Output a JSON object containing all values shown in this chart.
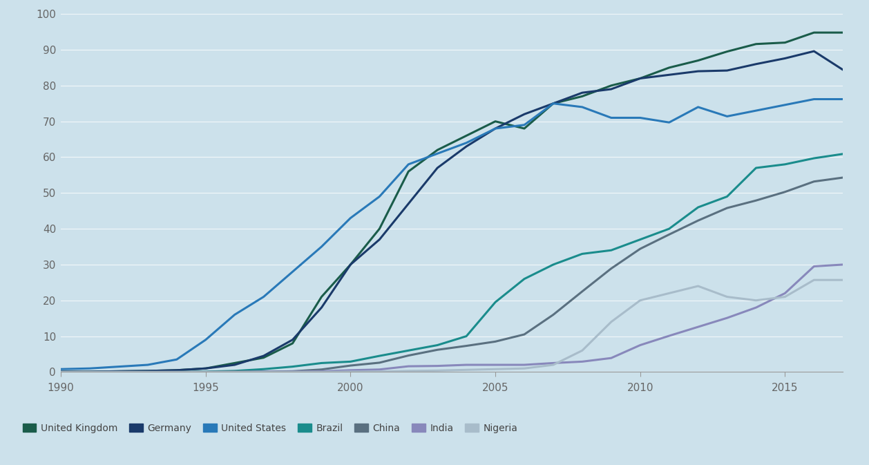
{
  "background_color": "#cce1eb",
  "xlim": [
    1990,
    2017
  ],
  "ylim": [
    0,
    100
  ],
  "yticks": [
    0,
    10,
    20,
    30,
    40,
    50,
    60,
    70,
    80,
    90,
    100
  ],
  "xticks": [
    1990,
    1995,
    2000,
    2005,
    2010,
    2015
  ],
  "series": {
    "United Kingdom": {
      "color": "#1a5c4a",
      "data": {
        "1990": 0.1,
        "1991": 0.1,
        "1992": 0.2,
        "1993": 0.3,
        "1994": 0.5,
        "1995": 1.0,
        "1996": 2.5,
        "1997": 4.0,
        "1998": 8.0,
        "1999": 21.0,
        "2000": 30.0,
        "2001": 40.0,
        "2002": 56.0,
        "2003": 62.0,
        "2004": 66.0,
        "2005": 70.0,
        "2006": 68.0,
        "2007": 75.0,
        "2008": 77.0,
        "2009": 80.0,
        "2010": 82.0,
        "2011": 85.0,
        "2012": 87.0,
        "2013": 89.5,
        "2014": 91.6,
        "2015": 92.0,
        "2016": 94.8,
        "2017": 94.8
      }
    },
    "Germany": {
      "color": "#1a3a6a",
      "data": {
        "1990": 0.1,
        "1991": 0.1,
        "1992": 0.2,
        "1993": 0.3,
        "1994": 0.5,
        "1995": 1.0,
        "1996": 2.0,
        "1997": 4.5,
        "1998": 9.0,
        "1999": 18.0,
        "2000": 30.0,
        "2001": 37.0,
        "2002": 47.0,
        "2003": 57.0,
        "2004": 63.0,
        "2005": 68.0,
        "2006": 72.0,
        "2007": 75.0,
        "2008": 78.0,
        "2009": 79.0,
        "2010": 82.0,
        "2011": 83.0,
        "2012": 84.0,
        "2013": 84.2,
        "2014": 86.0,
        "2015": 87.6,
        "2016": 89.6,
        "2017": 84.4
      }
    },
    "United States": {
      "color": "#2979b8",
      "data": {
        "1990": 0.8,
        "1991": 1.0,
        "1992": 1.5,
        "1993": 2.0,
        "1994": 3.5,
        "1995": 9.0,
        "1996": 16.0,
        "1997": 21.0,
        "1998": 28.0,
        "1999": 35.0,
        "2000": 43.0,
        "2001": 49.0,
        "2002": 58.0,
        "2003": 61.0,
        "2004": 64.0,
        "2005": 68.0,
        "2006": 69.0,
        "2007": 75.0,
        "2008": 74.0,
        "2009": 71.0,
        "2010": 71.0,
        "2011": 69.7,
        "2012": 74.0,
        "2013": 71.4,
        "2014": 73.0,
        "2015": 74.6,
        "2016": 76.2,
        "2017": 76.2
      }
    },
    "Brazil": {
      "color": "#1a8c8c",
      "data": {
        "1990": 0.0,
        "1991": 0.0,
        "1992": 0.0,
        "1993": 0.0,
        "1994": 0.0,
        "1995": 0.1,
        "1996": 0.3,
        "1997": 0.8,
        "1998": 1.5,
        "1999": 2.5,
        "2000": 2.9,
        "2001": 4.5,
        "2002": 6.0,
        "2003": 7.5,
        "2004": 10.0,
        "2005": 19.5,
        "2006": 26.0,
        "2007": 30.0,
        "2008": 33.0,
        "2009": 34.0,
        "2010": 37.0,
        "2011": 40.0,
        "2012": 46.0,
        "2013": 49.0,
        "2014": 57.0,
        "2015": 58.0,
        "2016": 59.7,
        "2017": 60.9
      }
    },
    "China": {
      "color": "#5a7080",
      "data": {
        "1990": 0.0,
        "1991": 0.0,
        "1992": 0.0,
        "1993": 0.0,
        "1994": 0.0,
        "1995": 0.0,
        "1996": 0.1,
        "1997": 0.1,
        "1998": 0.2,
        "1999": 0.7,
        "2000": 1.8,
        "2001": 2.6,
        "2002": 4.6,
        "2003": 6.2,
        "2004": 7.3,
        "2005": 8.5,
        "2006": 10.5,
        "2007": 16.0,
        "2008": 22.5,
        "2009": 28.9,
        "2010": 34.4,
        "2011": 38.4,
        "2012": 42.3,
        "2013": 45.8,
        "2014": 47.9,
        "2015": 50.3,
        "2016": 53.2,
        "2017": 54.3
      }
    },
    "India": {
      "color": "#8888bb",
      "data": {
        "1990": 0.0,
        "1991": 0.0,
        "1992": 0.0,
        "1993": 0.0,
        "1994": 0.0,
        "1995": 0.0,
        "1996": 0.0,
        "1997": 0.1,
        "1998": 0.1,
        "1999": 0.2,
        "2000": 0.5,
        "2001": 0.7,
        "2002": 1.6,
        "2003": 1.7,
        "2004": 2.0,
        "2005": 2.0,
        "2006": 2.0,
        "2007": 2.5,
        "2008": 2.9,
        "2009": 3.9,
        "2010": 7.5,
        "2011": 10.1,
        "2012": 12.6,
        "2013": 15.1,
        "2014": 18.0,
        "2015": 22.0,
        "2016": 29.5,
        "2017": 30.0
      }
    },
    "Nigeria": {
      "color": "#a8bcca",
      "data": {
        "1990": 0.0,
        "1991": 0.0,
        "1992": 0.0,
        "1993": 0.0,
        "1994": 0.0,
        "1995": 0.0,
        "1996": 0.0,
        "1997": 0.0,
        "1998": 0.0,
        "1999": 0.0,
        "2000": 0.1,
        "2001": 0.1,
        "2002": 0.3,
        "2003": 0.4,
        "2004": 0.6,
        "2005": 0.8,
        "2006": 1.0,
        "2007": 2.0,
        "2008": 6.0,
        "2009": 14.0,
        "2010": 20.0,
        "2011": 22.0,
        "2012": 24.0,
        "2013": 21.0,
        "2014": 20.0,
        "2015": 21.0,
        "2016": 25.7,
        "2017": 25.7
      }
    }
  },
  "legend_order": [
    "United Kingdom",
    "Germany",
    "United States",
    "Brazil",
    "China",
    "India",
    "Nigeria"
  ]
}
